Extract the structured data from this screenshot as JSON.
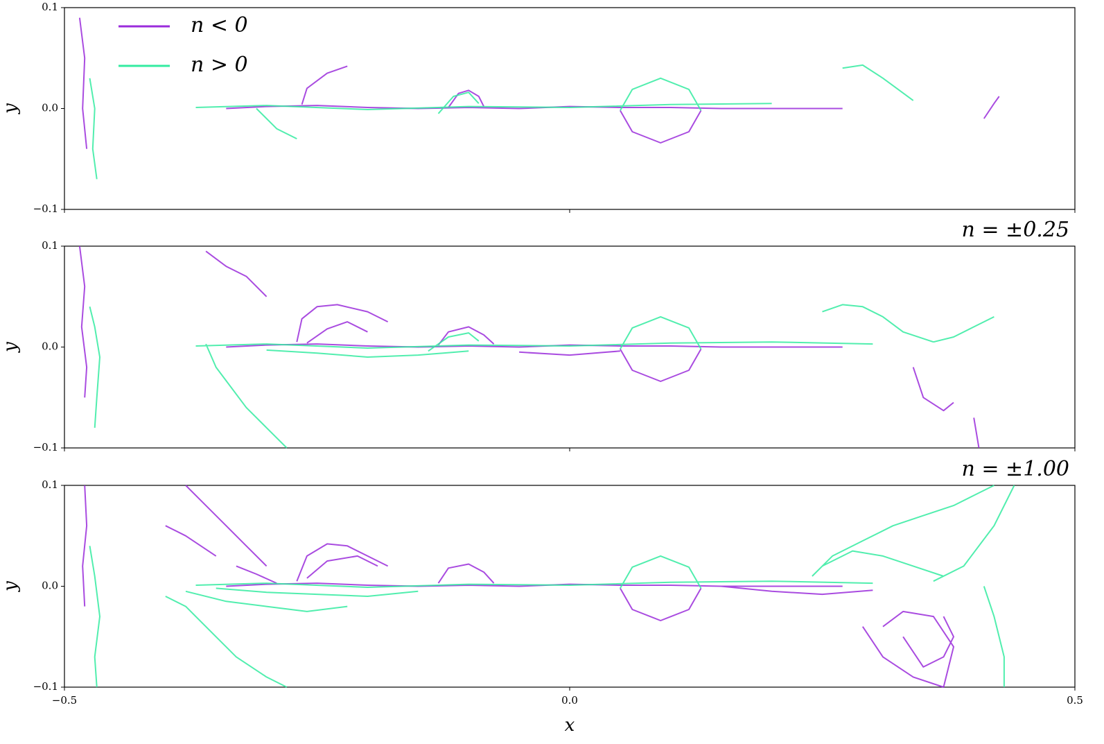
{
  "chart_data": [
    {
      "type": "line",
      "ylabel": "y",
      "xlim": [
        -0.5,
        0.5
      ],
      "ylim": [
        -0.1,
        0.1
      ],
      "yticks": [
        {
          "value": -0.1,
          "label": "−0.1"
        },
        {
          "value": 0,
          "label": "0.0"
        },
        {
          "value": 0.1,
          "label": "0.1"
        }
      ],
      "legend": "upper left",
      "series": [
        {
          "name": "n < 0",
          "color": "#9a2bdb",
          "x": [
            -0.34,
            -0.3,
            -0.25,
            -0.2,
            -0.15,
            -0.1,
            -0.05,
            0,
            0.05,
            0.1,
            0.15,
            0.2,
            0.27,
            null,
            0.05,
            0.062,
            0.09,
            0.118,
            0.13,
            null,
            -0.485,
            -0.48,
            -0.482,
            -0.478,
            null,
            -0.265,
            -0.26,
            -0.24,
            -0.22,
            null,
            -0.12,
            -0.11,
            -0.1,
            -0.09,
            -0.085,
            null,
            0.41,
            0.42,
            0.425
          ],
          "values": [
            0,
            0.002,
            0.003,
            0.001,
            0,
            0.001,
            0,
            0.002,
            0.001,
            0.001,
            0,
            0,
            0,
            null,
            -0.002,
            -0.023,
            -0.034,
            -0.023,
            -0.002,
            null,
            0.09,
            0.05,
            0.0,
            -0.04,
            null,
            0.004,
            0.02,
            0.035,
            0.042,
            null,
            0.001,
            0.015,
            0.018,
            0.012,
            0.002,
            null,
            -0.01,
            0.005,
            0.012
          ]
        },
        {
          "name": "n > 0",
          "color": "#33eba0",
          "x": [
            -0.37,
            -0.3,
            -0.2,
            -0.1,
            0,
            0.1,
            0.2,
            null,
            0.05,
            0.062,
            0.09,
            0.118,
            0.13,
            null,
            -0.475,
            -0.47,
            -0.472,
            -0.468,
            null,
            0.27,
            0.29,
            0.31,
            0.34,
            null,
            -0.31,
            -0.29,
            -0.27,
            null,
            -0.13,
            -0.115,
            -0.1,
            -0.09
          ],
          "values": [
            0.001,
            0.003,
            -0.001,
            0.002,
            0.001,
            0.004,
            0.005,
            null,
            -0.002,
            0.019,
            0.03,
            0.019,
            -0.002,
            null,
            0.03,
            0.0,
            -0.04,
            -0.07,
            null,
            0.04,
            0.043,
            0.03,
            0.008,
            null,
            0.0,
            -0.02,
            -0.03,
            null,
            -0.005,
            0.012,
            0.016,
            0.005
          ]
        }
      ]
    },
    {
      "type": "line",
      "title": "n = ±0.25",
      "ylabel": "y",
      "xlim": [
        -0.5,
        0.5
      ],
      "ylim": [
        -0.1,
        0.1
      ],
      "yticks": [
        {
          "value": -0.1,
          "label": "−0.1"
        },
        {
          "value": 0,
          "label": "0.0"
        },
        {
          "value": 0.1,
          "label": "0.1"
        }
      ],
      "series": [
        {
          "color": "#9a2bdb",
          "x": [
            -0.34,
            -0.3,
            -0.25,
            -0.2,
            -0.15,
            -0.1,
            -0.05,
            0,
            0.05,
            0.1,
            0.15,
            0.2,
            0.27,
            null,
            0.05,
            0.062,
            0.09,
            0.118,
            0.13,
            null,
            -0.485,
            -0.48,
            -0.483,
            -0.478,
            -0.48,
            null,
            -0.27,
            -0.265,
            -0.25,
            -0.23,
            -0.2,
            -0.18,
            null,
            -0.26,
            -0.24,
            -0.22,
            -0.2,
            null,
            -0.13,
            -0.12,
            -0.1,
            -0.085,
            -0.075,
            null,
            0.34,
            0.35,
            0.37,
            0.38,
            null,
            0.4,
            0.405,
            null,
            -0.36,
            -0.34,
            -0.32,
            -0.3,
            null,
            -0.05,
            0,
            0.05
          ],
          "values": [
            0,
            0.002,
            0.003,
            0.001,
            0,
            0.001,
            0,
            0.002,
            0.001,
            0.001,
            0,
            0,
            0,
            null,
            -0.002,
            -0.023,
            -0.034,
            -0.023,
            -0.002,
            null,
            0.1,
            0.06,
            0.02,
            -0.02,
            -0.05,
            null,
            0.005,
            0.028,
            0.04,
            0.042,
            0.035,
            0.025,
            null,
            0.004,
            0.018,
            0.025,
            0.015,
            null,
            0.002,
            0.015,
            0.02,
            0.012,
            0.003,
            null,
            -0.02,
            -0.05,
            -0.063,
            -0.055,
            null,
            -0.07,
            -0.1,
            null,
            0.095,
            0.08,
            0.07,
            0.05,
            null,
            -0.005,
            -0.008,
            -0.004
          ]
        },
        {
          "color": "#33eba0",
          "x": [
            -0.37,
            -0.3,
            -0.2,
            -0.1,
            0,
            0.1,
            0.2,
            0.3,
            null,
            0.05,
            0.062,
            0.09,
            0.118,
            0.13,
            null,
            -0.475,
            -0.47,
            -0.465,
            -0.468,
            -0.47,
            null,
            -0.36,
            -0.35,
            -0.32,
            -0.3,
            -0.28,
            null,
            0.25,
            0.27,
            0.29,
            0.31,
            0.33,
            0.36,
            null,
            0.36,
            0.38,
            0.4,
            0.42,
            null,
            -0.3,
            -0.25,
            -0.2,
            -0.15,
            -0.1,
            null,
            -0.14,
            -0.12,
            -0.1,
            -0.09
          ],
          "values": [
            0.001,
            0.003,
            -0.001,
            0.002,
            0.001,
            0.004,
            0.005,
            0.003,
            null,
            -0.002,
            0.019,
            0.03,
            0.019,
            -0.002,
            null,
            0.04,
            0.02,
            -0.01,
            -0.05,
            -0.08,
            null,
            0.003,
            -0.02,
            -0.06,
            -0.08,
            -0.1,
            null,
            0.035,
            0.042,
            0.04,
            0.03,
            0.015,
            0.005,
            null,
            0.005,
            0.01,
            0.02,
            0.03,
            null,
            -0.003,
            -0.006,
            -0.01,
            -0.008,
            -0.004,
            null,
            -0.004,
            0.01,
            0.014,
            0.006
          ]
        }
      ]
    },
    {
      "type": "line",
      "title": "n = ±1.00",
      "ylabel": "y",
      "xlabel": "x",
      "xlim": [
        -0.5,
        0.5
      ],
      "ylim": [
        -0.1,
        0.1
      ],
      "xticks": [
        {
          "value": -0.5,
          "label": "−0.5"
        },
        {
          "value": 0,
          "label": "0.0"
        },
        {
          "value": 0.5,
          "label": "0.5"
        }
      ],
      "yticks": [
        {
          "value": -0.1,
          "label": "−0.1"
        },
        {
          "value": 0,
          "label": "0.0"
        },
        {
          "value": 0.1,
          "label": "0.1"
        }
      ],
      "series": [
        {
          "color": "#9a2bdb",
          "x": [
            -0.34,
            -0.3,
            -0.25,
            -0.2,
            -0.15,
            -0.1,
            -0.05,
            0,
            0.05,
            0.1,
            0.15,
            0.2,
            0.27,
            null,
            0.05,
            0.062,
            0.09,
            0.118,
            0.13,
            null,
            -0.48,
            -0.478,
            -0.482,
            -0.48,
            null,
            -0.38,
            -0.36,
            -0.34,
            -0.32,
            -0.3,
            null,
            -0.4,
            -0.38,
            -0.35,
            null,
            -0.33,
            -0.31,
            -0.29,
            null,
            -0.27,
            -0.26,
            -0.24,
            -0.22,
            -0.2,
            -0.18,
            null,
            -0.26,
            -0.24,
            -0.21,
            -0.19,
            null,
            -0.13,
            -0.12,
            -0.1,
            -0.085,
            -0.075,
            null,
            0.29,
            0.31,
            0.34,
            0.37,
            0.38,
            0.36,
            0.33,
            0.31,
            null,
            0.33,
            0.35,
            0.37,
            0.38,
            0.37,
            null,
            0.15,
            0.2,
            0.25,
            0.3
          ],
          "values": [
            0,
            0.002,
            0.003,
            0.001,
            0,
            0.001,
            0,
            0.002,
            0.001,
            0.001,
            0,
            0,
            0,
            null,
            -0.002,
            -0.023,
            -0.034,
            -0.023,
            -0.002,
            null,
            0.1,
            0.06,
            0.02,
            -0.02,
            null,
            0.1,
            0.08,
            0.06,
            0.04,
            0.02,
            null,
            0.06,
            0.05,
            0.03,
            null,
            0.02,
            0.012,
            0.003,
            null,
            0.005,
            0.03,
            0.042,
            0.04,
            0.03,
            0.02,
            null,
            0.008,
            0.025,
            0.03,
            0.02,
            null,
            0.003,
            0.018,
            0.022,
            0.014,
            0.003,
            null,
            -0.04,
            -0.07,
            -0.09,
            -0.1,
            -0.06,
            -0.03,
            -0.025,
            -0.04,
            null,
            -0.05,
            -0.08,
            -0.07,
            -0.05,
            -0.03,
            null,
            0,
            -0.005,
            -0.008,
            -0.004
          ]
        },
        {
          "color": "#33eba0",
          "x": [
            -0.37,
            -0.3,
            -0.2,
            -0.1,
            0,
            0.1,
            0.2,
            0.3,
            null,
            0.05,
            0.062,
            0.09,
            0.118,
            0.13,
            null,
            -0.475,
            -0.47,
            -0.465,
            -0.47,
            -0.468,
            null,
            -0.4,
            -0.38,
            -0.35,
            -0.33,
            -0.3,
            -0.28,
            null,
            -0.38,
            -0.34,
            -0.3,
            -0.26,
            -0.22,
            null,
            -0.35,
            -0.3,
            -0.25,
            -0.2,
            -0.15,
            null,
            0.24,
            0.26,
            0.29,
            0.32,
            0.35,
            0.38,
            0.4,
            0.42,
            null,
            0.25,
            0.28,
            0.31,
            0.34,
            0.37,
            null,
            0.36,
            0.39,
            0.42,
            0.44,
            null,
            0.41,
            0.42,
            0.43,
            0.43
          ],
          "values": [
            0.001,
            0.003,
            -0.001,
            0.002,
            0.001,
            0.004,
            0.005,
            0.003,
            null,
            -0.002,
            0.019,
            0.03,
            0.019,
            -0.002,
            null,
            0.04,
            0.01,
            -0.03,
            -0.07,
            -0.1,
            null,
            -0.01,
            -0.02,
            -0.05,
            -0.07,
            -0.09,
            -0.1,
            null,
            -0.005,
            -0.015,
            -0.02,
            -0.025,
            -0.02,
            null,
            -0.002,
            -0.006,
            -0.008,
            -0.01,
            -0.005,
            null,
            0.01,
            0.03,
            0.045,
            0.06,
            0.07,
            0.08,
            0.09,
            0.1,
            null,
            0.02,
            0.035,
            0.03,
            0.02,
            0.01,
            null,
            0.005,
            0.02,
            0.06,
            0.1,
            null,
            0.0,
            -0.03,
            -0.07,
            -0.1
          ]
        }
      ]
    }
  ]
}
